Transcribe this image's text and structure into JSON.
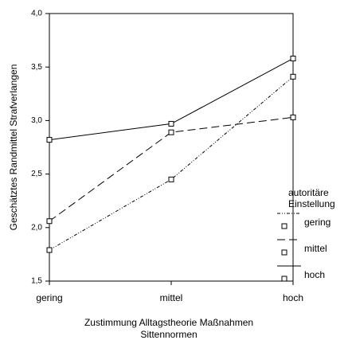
{
  "chart_data": {
    "type": "line",
    "categories": [
      "gering",
      "mittel",
      "hoch"
    ],
    "series": [
      {
        "name": "gering",
        "color": "#000000",
        "dash": "4,2,1,2,1,2",
        "values": [
          1.79,
          2.45,
          3.41
        ]
      },
      {
        "name": "mittel",
        "color": "#000000",
        "dash": "10,5",
        "values": [
          2.06,
          2.89,
          3.03
        ]
      },
      {
        "name": "hoch",
        "color": "#000000",
        "values": [
          2.82,
          2.97,
          3.58
        ]
      }
    ],
    "ylim": [
      1.5,
      4.0
    ],
    "yticks": [
      {
        "value": 1.5,
        "label": "1,5"
      },
      {
        "value": 2.0,
        "label": "2,0"
      },
      {
        "value": 2.5,
        "label": "2,5"
      },
      {
        "value": 3.0,
        "label": "3,0"
      },
      {
        "value": 3.5,
        "label": "3,5"
      },
      {
        "value": 4.0,
        "label": "4,0"
      }
    ],
    "ylabel": "Geschätztes Randmittel Strafverlangen",
    "xlabel": [
      "Zustimmung Alltagstheorie Maßnahmen",
      "Sittennormen"
    ],
    "legend_title": [
      "autoritäre",
      "Einstellung"
    ]
  }
}
